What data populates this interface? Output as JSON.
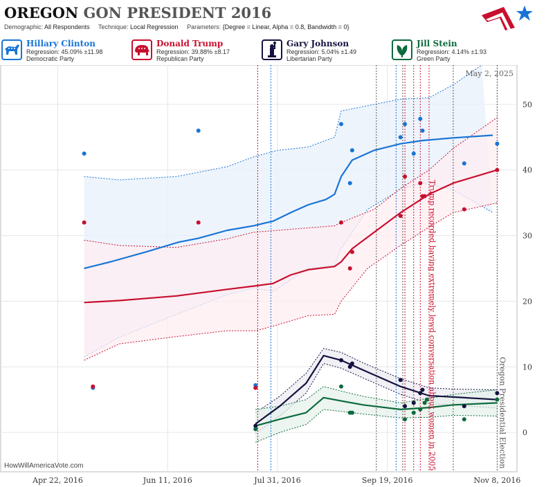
{
  "header": {
    "state": "OREGON",
    "title_rest": "GON PRESIDENT 2016",
    "demographic_label": "Demographic:",
    "demographic": "All Respondents",
    "technique_label": "Technique:",
    "technique": "Local Regression",
    "parameters_label": "Parameters:",
    "parameters": "{Degree = Linear, Alpha = 0.8, Bandwidth = 0}"
  },
  "candidates": [
    {
      "name": "Hillary Clinton",
      "regression": "Regression: 45.09% ±11.98",
      "party": "Democratic Party",
      "color": "#1874d6",
      "icon": "donkey-icon"
    },
    {
      "name": "Donald Trump",
      "regression": "Regression: 39.88% ±8.17",
      "party": "Republican Party",
      "color": "#c8102e",
      "icon": "elephant-icon"
    },
    {
      "name": "Gary Johnson",
      "regression": "Regression: 5.04% ±1.49",
      "party": "Libertarian Party",
      "color": "#14123f",
      "icon": "liberty-statue-icon"
    },
    {
      "name": "Jill Stein",
      "regression": "Regression: 4.14% ±1.93",
      "party": "Green Party",
      "color": "#0c6a3c",
      "icon": "leaf-icon"
    }
  ],
  "credit": "HowWillAmericaVote.com",
  "chart_data": {
    "type": "scatter",
    "x_start": "2016-03-27",
    "xlim": [
      "2016-03-27",
      "2016-11-17"
    ],
    "ylim": [
      -6,
      56
    ],
    "y_ticks": [
      0,
      10,
      20,
      30,
      40,
      50
    ],
    "x_ticks": [
      {
        "date": "2016-04-22",
        "label": "Apr 22, 2016"
      },
      {
        "date": "2016-06-11",
        "label": "Jun 11, 2016"
      },
      {
        "date": "2016-07-31",
        "label": "Jul 31, 2016"
      },
      {
        "date": "2016-09-19",
        "label": "Sep 19, 2016"
      },
      {
        "date": "2016-11-08",
        "label": "Nov 8, 2016"
      }
    ],
    "grid": true,
    "date_stamp": "May 2, 2025",
    "event_lines": [
      {
        "date": "2016-07-22",
        "color": "#c8102e"
      },
      {
        "date": "2016-07-28",
        "color": "#1874d6"
      },
      {
        "date": "2016-09-14",
        "color": "#555555"
      },
      {
        "date": "2016-09-23",
        "color": "#1874d6"
      },
      {
        "date": "2016-09-26",
        "color": "#555555"
      },
      {
        "date": "2016-09-27",
        "color": "#c8102e"
      },
      {
        "date": "2016-10-01",
        "color": "#c8102e"
      },
      {
        "date": "2016-10-04",
        "color": "#c8102e"
      },
      {
        "date": "2016-10-08",
        "color": "#c8102e"
      },
      {
        "date": "2016-10-19",
        "color": "#555555"
      },
      {
        "date": "2016-11-08",
        "color": "#555555"
      }
    ],
    "annotations": [
      {
        "text": "Trump recorded having extremely lewd conversation about women in 2005",
        "date": "2016-10-07",
        "y": 38.5,
        "color": "#c8102e"
      },
      {
        "text": "Oregon Presidential Election",
        "date": "2016-11-08",
        "y": 11.5,
        "color": "#555555"
      }
    ],
    "series": [
      {
        "name": "Hillary Clinton",
        "color": "#1874d6",
        "fill": "#e8f0fb",
        "points": [
          [
            "2016-05-04",
            42.5
          ],
          [
            "2016-05-08",
            6.8
          ],
          [
            "2016-06-25",
            46
          ],
          [
            "2016-07-21",
            7.2
          ],
          [
            "2016-08-29",
            47
          ],
          [
            "2016-09-02",
            38
          ],
          [
            "2016-09-03",
            43
          ],
          [
            "2016-09-25",
            45
          ],
          [
            "2016-09-27",
            47
          ],
          [
            "2016-10-01",
            42.5
          ],
          [
            "2016-10-04",
            47.8
          ],
          [
            "2016-10-05",
            46
          ],
          [
            "2016-10-24",
            41
          ],
          [
            "2016-11-08",
            44
          ]
        ],
        "trend": [
          [
            "2016-05-04",
            25
          ],
          [
            "2016-05-16",
            26
          ],
          [
            "2016-06-01",
            27.5
          ],
          [
            "2016-06-16",
            29
          ],
          [
            "2016-06-25",
            29.6
          ],
          [
            "2016-07-08",
            30.8
          ],
          [
            "2016-07-20",
            31.5
          ],
          [
            "2016-07-29",
            32.2
          ],
          [
            "2016-08-06",
            33.5
          ],
          [
            "2016-08-14",
            34.7
          ],
          [
            "2016-08-22",
            35.5
          ],
          [
            "2016-08-26",
            36.3
          ],
          [
            "2016-08-29",
            39
          ],
          [
            "2016-09-03",
            41.5
          ],
          [
            "2016-09-13",
            43
          ],
          [
            "2016-09-25",
            44
          ],
          [
            "2016-10-05",
            44.5
          ],
          [
            "2016-10-19",
            44.9
          ],
          [
            "2016-11-06",
            45.3
          ]
        ],
        "upper": [
          [
            "2016-05-04",
            39
          ],
          [
            "2016-05-20",
            38.5
          ],
          [
            "2016-06-15",
            39
          ],
          [
            "2016-07-08",
            40.5
          ],
          [
            "2016-07-20",
            42
          ],
          [
            "2016-07-31",
            43
          ],
          [
            "2016-08-14",
            43.5
          ],
          [
            "2016-08-26",
            45
          ],
          [
            "2016-08-29",
            49
          ],
          [
            "2016-09-13",
            50
          ],
          [
            "2016-09-25",
            50.8
          ],
          [
            "2016-10-08",
            51
          ],
          [
            "2016-10-19",
            53
          ],
          [
            "2016-11-01",
            56
          ]
        ],
        "lower": [
          [
            "2016-05-04",
            11.5
          ],
          [
            "2016-05-20",
            14.5
          ],
          [
            "2016-06-15",
            18
          ],
          [
            "2016-07-08",
            21
          ],
          [
            "2016-07-20",
            22
          ],
          [
            "2016-07-29",
            21.5
          ],
          [
            "2016-08-14",
            25
          ],
          [
            "2016-08-26",
            25.5
          ],
          [
            "2016-08-29",
            28
          ],
          [
            "2016-09-10",
            34
          ],
          [
            "2016-09-25",
            37
          ],
          [
            "2016-10-05",
            38
          ],
          [
            "2016-10-19",
            37
          ],
          [
            "2016-11-06",
            33.5
          ]
        ]
      },
      {
        "name": "Donald Trump",
        "color": "#c8102e",
        "fill": "#fdeef1",
        "points": [
          [
            "2016-05-04",
            32
          ],
          [
            "2016-05-08",
            7
          ],
          [
            "2016-06-25",
            32
          ],
          [
            "2016-07-21",
            6.8
          ],
          [
            "2016-08-29",
            32
          ],
          [
            "2016-09-02",
            25
          ],
          [
            "2016-09-03",
            27.5
          ],
          [
            "2016-09-25",
            33
          ],
          [
            "2016-09-27",
            39
          ],
          [
            "2016-10-04",
            38
          ],
          [
            "2016-10-05",
            36
          ],
          [
            "2016-10-06",
            36
          ],
          [
            "2016-10-24",
            34
          ],
          [
            "2016-11-08",
            40
          ]
        ],
        "trend": [
          [
            "2016-05-04",
            19.8
          ],
          [
            "2016-05-20",
            20.1
          ],
          [
            "2016-06-15",
            20.8
          ],
          [
            "2016-07-08",
            21.8
          ],
          [
            "2016-07-20",
            22.3
          ],
          [
            "2016-07-29",
            22.7
          ],
          [
            "2016-08-06",
            24
          ],
          [
            "2016-08-14",
            24.8
          ],
          [
            "2016-08-26",
            25.3
          ],
          [
            "2016-08-29",
            26
          ],
          [
            "2016-09-03",
            28
          ],
          [
            "2016-09-13",
            30.5
          ],
          [
            "2016-09-25",
            33.5
          ],
          [
            "2016-10-08",
            36.3
          ],
          [
            "2016-10-19",
            38
          ],
          [
            "2016-11-08",
            40
          ]
        ],
        "upper": [
          [
            "2016-05-04",
            29.3
          ],
          [
            "2016-05-20",
            28.5
          ],
          [
            "2016-06-15",
            28.2
          ],
          [
            "2016-07-08",
            29.5
          ],
          [
            "2016-07-20",
            30.5
          ],
          [
            "2016-07-31",
            30.8
          ],
          [
            "2016-08-26",
            31.5
          ],
          [
            "2016-08-29",
            32
          ],
          [
            "2016-09-13",
            34
          ],
          [
            "2016-09-25",
            37.2
          ],
          [
            "2016-10-08",
            40
          ],
          [
            "2016-10-19",
            43.3
          ],
          [
            "2016-11-08",
            48
          ]
        ],
        "lower": [
          [
            "2016-05-04",
            11
          ],
          [
            "2016-05-20",
            13.5
          ],
          [
            "2016-06-15",
            14.6
          ],
          [
            "2016-07-08",
            15.5
          ],
          [
            "2016-07-21",
            15.5
          ],
          [
            "2016-07-29",
            16.2
          ],
          [
            "2016-08-14",
            17.8
          ],
          [
            "2016-08-26",
            18
          ],
          [
            "2016-08-29",
            20
          ],
          [
            "2016-09-10",
            25
          ],
          [
            "2016-09-25",
            28.5
          ],
          [
            "2016-10-08",
            31.3
          ],
          [
            "2016-10-19",
            33.5
          ],
          [
            "2016-11-08",
            35
          ]
        ]
      },
      {
        "name": "Gary Johnson",
        "color": "#14123f",
        "fill": "#ebebf2",
        "points": [
          [
            "2016-07-21",
            1
          ],
          [
            "2016-08-29",
            11
          ],
          [
            "2016-09-02",
            10
          ],
          [
            "2016-09-03",
            10.5
          ],
          [
            "2016-09-25",
            8
          ],
          [
            "2016-09-27",
            4
          ],
          [
            "2016-10-01",
            4.5
          ],
          [
            "2016-10-04",
            6
          ],
          [
            "2016-10-05",
            6.5
          ],
          [
            "2016-10-24",
            4
          ],
          [
            "2016-11-08",
            6
          ]
        ],
        "trend": [
          [
            "2016-07-21",
            1.3
          ],
          [
            "2016-08-01",
            4
          ],
          [
            "2016-08-13",
            7.5
          ],
          [
            "2016-08-21",
            11.7
          ],
          [
            "2016-08-29",
            11
          ],
          [
            "2016-09-08",
            9.5
          ],
          [
            "2016-09-25",
            7
          ],
          [
            "2016-10-08",
            5.6
          ],
          [
            "2016-10-19",
            5.4
          ],
          [
            "2016-11-08",
            5
          ]
        ],
        "upper": [
          [
            "2016-07-21",
            3
          ],
          [
            "2016-08-01",
            5.5
          ],
          [
            "2016-08-13",
            9
          ],
          [
            "2016-08-21",
            12.8
          ],
          [
            "2016-08-29",
            12.2
          ],
          [
            "2016-09-08",
            10.6
          ],
          [
            "2016-09-25",
            8.2
          ],
          [
            "2016-10-08",
            6.8
          ],
          [
            "2016-10-19",
            6.6
          ],
          [
            "2016-11-08",
            6.5
          ]
        ],
        "lower": [
          [
            "2016-07-21",
            -0.2
          ],
          [
            "2016-08-01",
            2.5
          ],
          [
            "2016-08-13",
            6
          ],
          [
            "2016-08-21",
            10.5
          ],
          [
            "2016-08-29",
            9.8
          ],
          [
            "2016-09-08",
            8.3
          ],
          [
            "2016-09-25",
            5.8
          ],
          [
            "2016-10-08",
            4.4
          ],
          [
            "2016-10-19",
            4.2
          ],
          [
            "2016-11-08",
            3.7
          ]
        ]
      },
      {
        "name": "Jill Stein",
        "color": "#0c6a3c",
        "fill": "#e6f1eb",
        "points": [
          [
            "2016-07-21",
            0.5
          ],
          [
            "2016-08-29",
            7
          ],
          [
            "2016-09-02",
            3
          ],
          [
            "2016-09-03",
            3
          ],
          [
            "2016-09-27",
            2
          ],
          [
            "2016-10-01",
            3
          ],
          [
            "2016-10-04",
            3.5
          ],
          [
            "2016-10-06",
            4.5
          ],
          [
            "2016-10-07",
            5
          ],
          [
            "2016-10-24",
            2
          ],
          [
            "2016-11-08",
            5
          ]
        ],
        "trend": [
          [
            "2016-07-21",
            1
          ],
          [
            "2016-08-01",
            2
          ],
          [
            "2016-08-13",
            3
          ],
          [
            "2016-08-21",
            5.3
          ],
          [
            "2016-08-29",
            4.8
          ],
          [
            "2016-09-08",
            4.2
          ],
          [
            "2016-09-25",
            3.5
          ],
          [
            "2016-10-08",
            3.8
          ],
          [
            "2016-10-19",
            4.2
          ],
          [
            "2016-11-08",
            4.5
          ]
        ],
        "upper": [
          [
            "2016-07-21",
            3.5
          ],
          [
            "2016-08-01",
            4
          ],
          [
            "2016-08-13",
            5
          ],
          [
            "2016-08-21",
            7
          ],
          [
            "2016-08-29",
            6.3
          ],
          [
            "2016-09-08",
            5.5
          ],
          [
            "2016-09-25",
            4.5
          ],
          [
            "2016-10-08",
            5.2
          ],
          [
            "2016-10-19",
            5.8
          ],
          [
            "2016-11-08",
            6.5
          ]
        ],
        "lower": [
          [
            "2016-07-21",
            -1.5
          ],
          [
            "2016-08-01",
            0
          ],
          [
            "2016-08-13",
            1.2
          ],
          [
            "2016-08-21",
            3.5
          ],
          [
            "2016-08-29",
            3.2
          ],
          [
            "2016-09-08",
            2.8
          ],
          [
            "2016-09-25",
            2.2
          ],
          [
            "2016-10-08",
            2.3
          ],
          [
            "2016-10-19",
            2.6
          ],
          [
            "2016-11-08",
            2.5
          ]
        ]
      }
    ]
  }
}
